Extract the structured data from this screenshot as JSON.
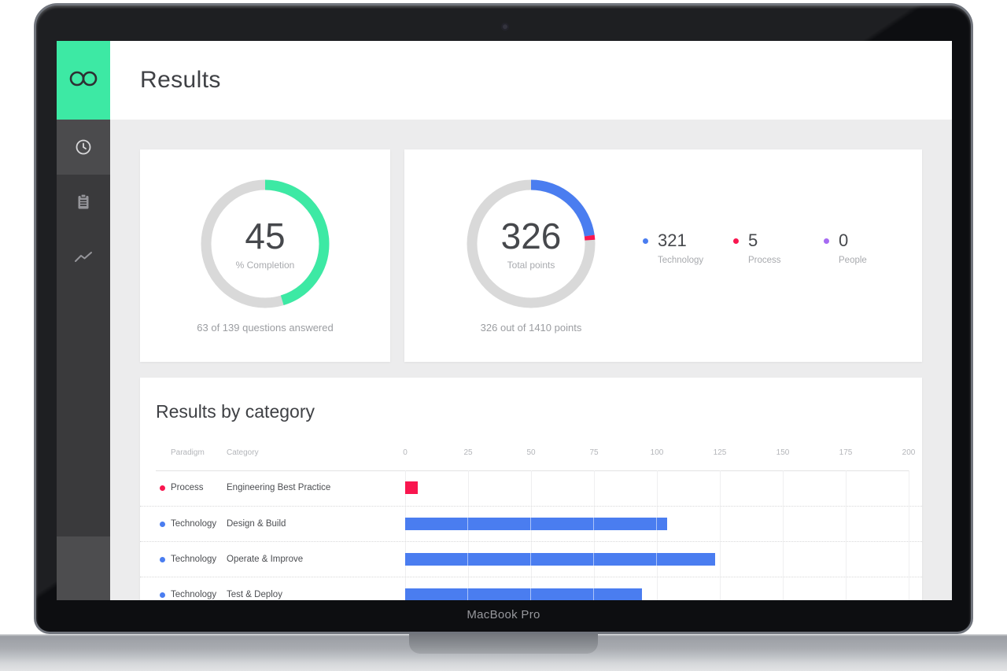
{
  "frame": {
    "device_label": "MacBook Pro"
  },
  "colors": {
    "green": "#3de9a4",
    "blue": "#4a7df0",
    "red": "#f9164f",
    "purple": "#a66bf2",
    "track_gray": "#d9d9d9",
    "sidebar_bg": "#3a3a3c",
    "content_bg": "#ececed"
  },
  "sidebar": {
    "logo": "infinity-logo",
    "items": [
      {
        "name": "history",
        "icon": "clock-icon",
        "active": true
      },
      {
        "name": "assessment",
        "icon": "clipboard-icon",
        "active": false
      },
      {
        "name": "results",
        "icon": "trend-icon",
        "active": false
      }
    ]
  },
  "header": {
    "title": "Results"
  },
  "chart_data": [
    {
      "type": "donut",
      "name": "completion-donut",
      "center_value": "45",
      "center_label": "% Completion",
      "caption": "63 of 139 questions answered",
      "percent": 45.3,
      "segments": [
        {
          "label": "completed",
          "value": 45.3,
          "color": "#3de9a4"
        },
        {
          "label": "remaining",
          "value": 54.7,
          "color": "#d9d9d9"
        }
      ]
    },
    {
      "type": "donut",
      "name": "total-points-donut",
      "center_value": "326",
      "center_label": "Total points",
      "caption": "326 out of 1410 points",
      "total": 1410,
      "segments": [
        {
          "label": "Technology",
          "value": 321,
          "color": "#4a7df0"
        },
        {
          "label": "Process",
          "value": 5,
          "color": "#f9164f"
        },
        {
          "label": "People",
          "value": 0,
          "color": "#a66bf2"
        }
      ]
    },
    {
      "type": "bar",
      "title": "Results by category",
      "columns": [
        "Paradigm",
        "Category"
      ],
      "axis_ticks": [
        0,
        25,
        50,
        75,
        100,
        125,
        150,
        175,
        200
      ],
      "xlim": [
        0,
        200
      ],
      "rows": [
        {
          "paradigm": "Process",
          "category": "Engineering Best Practice",
          "value": 5,
          "color": "#f9164f"
        },
        {
          "paradigm": "Technology",
          "category": "Design & Build",
          "value": 104,
          "color": "#4a7df0"
        },
        {
          "paradigm": "Technology",
          "category": "Operate & Improve",
          "value": 123,
          "color": "#4a7df0"
        },
        {
          "paradigm": "Technology",
          "category": "Test & Deploy",
          "value": 94,
          "color": "#4a7df0"
        }
      ]
    }
  ]
}
